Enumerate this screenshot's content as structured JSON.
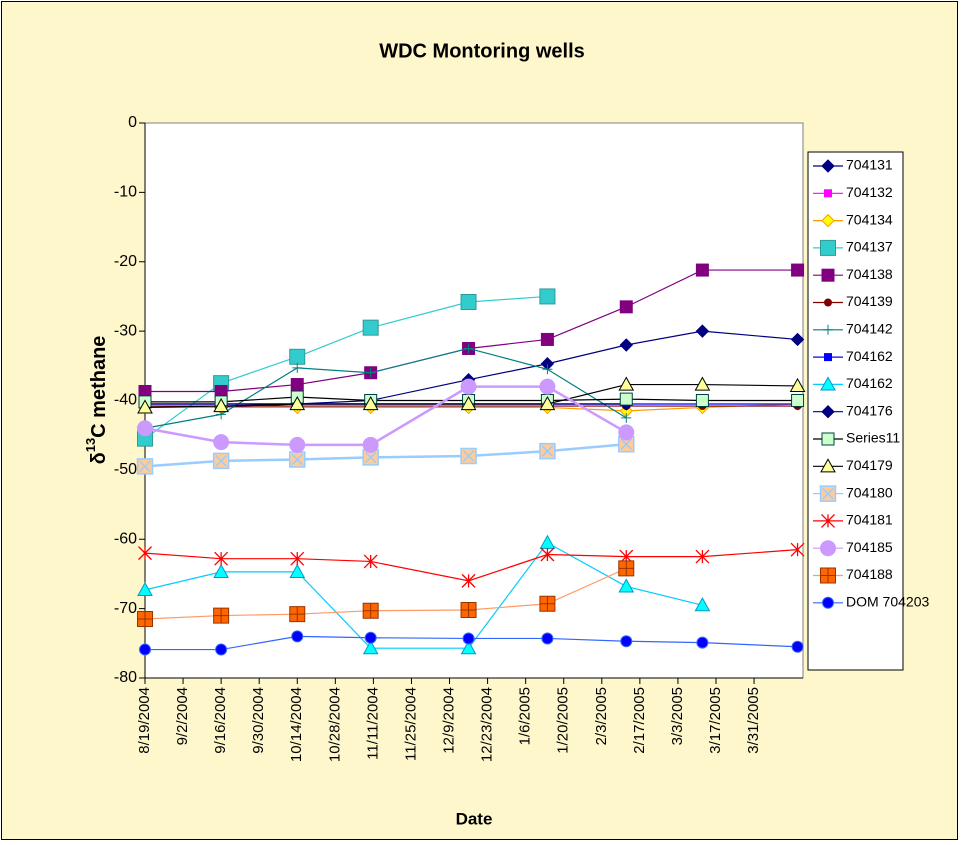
{
  "chart_data": {
    "type": "line",
    "title": "WDC Montoring wells",
    "x_label": "Date",
    "y_label": {
      "prefix": "δ",
      "sup": "13",
      "suffix": "C methane"
    },
    "x": [
      "8/19/2004",
      "9/16/2004",
      "10/14/2004",
      "11/10/2004",
      "12/16/2004",
      "1/14/2005",
      "2/12/2005",
      "3/12/2005",
      "4/16/2005"
    ],
    "xlim": [
      "8/19/2004",
      "4/18/2005"
    ],
    "xticks": [
      "8/19/2004",
      "9/2/2004",
      "9/16/2004",
      "9/30/2004",
      "10/14/2004",
      "10/28/2004",
      "11/11/2004",
      "11/25/2004",
      "12/9/2004",
      "12/23/2004",
      "1/6/2005",
      "1/20/2005",
      "2/3/2005",
      "2/17/2005",
      "3/3/2005",
      "3/17/2005",
      "3/31/2005"
    ],
    "ylim": [
      -80,
      0
    ],
    "yticks": [
      -80,
      -70,
      -60,
      -50,
      -40,
      -30,
      -20,
      -10,
      0
    ],
    "grid": false,
    "legend": "right",
    "series": [
      {
        "name": "704131",
        "color": "#000080",
        "marker": "diamond",
        "marker_fill": "#000080",
        "values": [
          -41,
          -41,
          -40.5,
          -40,
          -37,
          -34.7,
          -32,
          -30,
          -31.2
        ]
      },
      {
        "name": "704132",
        "color": "#FF00FF",
        "marker": "square-small",
        "marker_fill": "#FF00FF",
        "values": [
          -40.5,
          -40.5,
          -40.5,
          -40.5,
          -40.5,
          -40.5,
          -40.5,
          null,
          null
        ]
      },
      {
        "name": "704134",
        "color": "#FF9900",
        "marker": "diamond",
        "marker_fill": "#FFFF00",
        "values": [
          -41,
          -41,
          -41,
          -41,
          -41,
          -41,
          -41.5,
          -41,
          -40.5
        ]
      },
      {
        "name": "704137",
        "color": "#33CCCC",
        "marker": "square-large",
        "marker_fill": "#33CCCC",
        "values": [
          -45.5,
          -37.5,
          -33.7,
          -29.5,
          -25.8,
          -25,
          null,
          null,
          null
        ]
      },
      {
        "name": "704138",
        "color": "#800080",
        "marker": "square",
        "marker_fill": "#800080",
        "values": [
          -38.7,
          -38.7,
          -37.7,
          -36,
          -32.5,
          -31.2,
          -26.5,
          -21.2,
          -21.2
        ]
      },
      {
        "name": "704139",
        "color": "#800000",
        "marker": "circle-small",
        "marker_fill": "#800000",
        "values": [
          -40.8,
          -40.8,
          -40.8,
          -40.8,
          -40.8,
          -40.8,
          -40.8,
          -40.8,
          -40.8
        ]
      },
      {
        "name": "704142",
        "color": "#008080",
        "marker": "plus",
        "marker_fill": "#008080",
        "values": [
          -44,
          -42,
          -35.3,
          -36,
          -32.5,
          -35.5,
          -42.5,
          null,
          null
        ]
      },
      {
        "name": "704162",
        "color": "#0000FF",
        "marker": "square-small",
        "marker_fill": "#0000FF",
        "values": [
          -40.5,
          -40.5,
          -40.5,
          -40.5,
          -40.5,
          -40.5,
          -40.5,
          -40.5,
          -40.5
        ]
      },
      {
        "name": "704162",
        "color": "#00CCFF",
        "marker": "triangle",
        "marker_fill": "#00FFFF",
        "values": [
          -67.3,
          -64.7,
          -64.7,
          -75.7,
          -75.7,
          -60.5,
          -66.8,
          -69.5,
          null
        ]
      },
      {
        "name": "704176",
        "color": "#000080",
        "marker": "diamond",
        "marker_fill": "#000080",
        "values": [
          -40.5,
          -40.5,
          -40.5,
          -40.5,
          -40.5,
          -40.5,
          -40.5,
          null,
          null
        ]
      },
      {
        "name": "Series11",
        "color": "#000000",
        "marker": "square",
        "marker_fill": "#CCFFCC",
        "values": [
          -40.2,
          -40.2,
          -39.5,
          -40,
          -40,
          -40,
          -39.8,
          -40,
          -40
        ]
      },
      {
        "name": "704179",
        "color": "#000000",
        "marker": "triangle",
        "marker_fill": "#FFFF99",
        "values": [
          -41,
          -40.8,
          -40.5,
          -40.5,
          -40.5,
          -40.5,
          -37.7,
          -37.7,
          -37.9
        ]
      },
      {
        "name": "704180",
        "color": "#99CCFF",
        "marker": "x-large",
        "marker_fill": "#FFCC99",
        "values": [
          -49.5,
          -48.7,
          -48.5,
          -48.2,
          -48,
          -47.3,
          -46.3,
          null,
          null
        ]
      },
      {
        "name": "704181",
        "color": "#FF0000",
        "marker": "star",
        "marker_fill": "#FF0000",
        "values": [
          -62,
          -62.8,
          -62.8,
          -63.2,
          -66,
          -62.2,
          -62.5,
          -62.5,
          -61.5
        ]
      },
      {
        "name": "704185",
        "color": "#CC99FF",
        "marker": "circle-large",
        "marker_fill": "#CC99FF",
        "values": [
          -44,
          -46,
          -46.4,
          -46.4,
          -38,
          -38,
          -44.6,
          null,
          null
        ]
      },
      {
        "name": "704188",
        "color": "#FF9966",
        "marker": "square-plus",
        "marker_fill": "#FF6600",
        "values": [
          -71.5,
          -71,
          -70.8,
          -70.3,
          -70.2,
          -69.3,
          -64.2,
          null,
          null
        ]
      },
      {
        "name": "DOM 704203",
        "color": "#3366FF",
        "marker": "circle",
        "marker_fill": "#0000FF",
        "values": [
          -75.9,
          -75.9,
          -74,
          -74.2,
          -74.3,
          -74.3,
          -74.7,
          -74.9,
          -75.5
        ]
      }
    ]
  }
}
